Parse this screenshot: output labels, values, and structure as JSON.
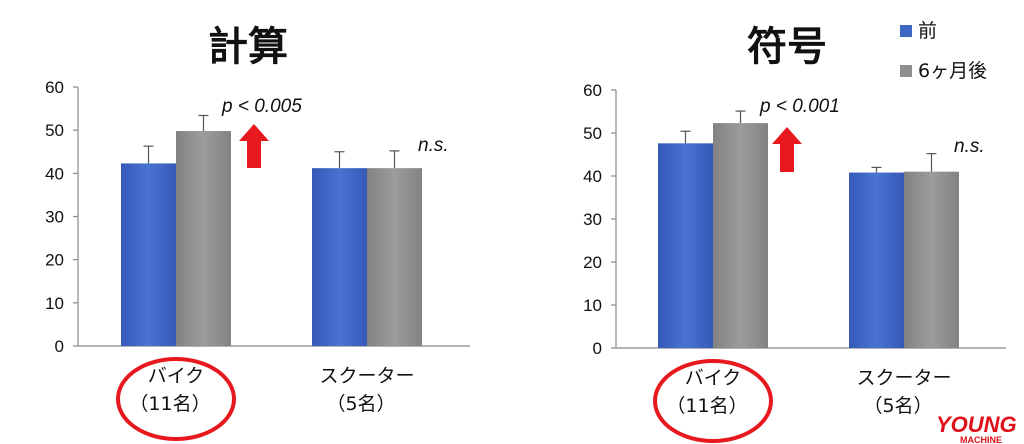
{
  "chart_data": [
    {
      "type": "bar",
      "title": "計算",
      "categories": [
        "バイク\n（11名）",
        "スクーター\n（5名）"
      ],
      "series": [
        {
          "name": "前",
          "values": [
            42.3,
            41.2
          ],
          "errors": [
            4.0,
            3.8
          ]
        },
        {
          "name": "6ヶ月後",
          "values": [
            49.8,
            41.2
          ],
          "errors": [
            3.6,
            4.0
          ]
        }
      ],
      "ylim": [
        0,
        60
      ],
      "yticks": [
        0,
        10,
        20,
        30,
        40,
        50,
        60
      ],
      "annotations": [
        "p < 0.005",
        "n.s."
      ],
      "highlight_category": 0,
      "grid": false
    },
    {
      "type": "bar",
      "title": "符号",
      "categories": [
        "バイク\n（11名）",
        "スクーター\n（5名）"
      ],
      "series": [
        {
          "name": "前",
          "values": [
            47.6,
            40.8
          ],
          "errors": [
            2.8,
            1.2
          ]
        },
        {
          "name": "6ヶ月後",
          "values": [
            52.3,
            41.0
          ],
          "errors": [
            2.8,
            4.2
          ]
        }
      ],
      "ylim": [
        0,
        60
      ],
      "yticks": [
        0,
        10,
        20,
        30,
        40,
        50,
        60
      ],
      "annotations": [
        "p < 0.001",
        "n.s."
      ],
      "highlight_category": 0,
      "grid": false
    }
  ],
  "legend": {
    "placement": "top-right",
    "items": [
      {
        "label": "前",
        "color": "#3f67c4"
      },
      {
        "label": "6ヶ月後",
        "color": "#8f8f8f"
      }
    ]
  },
  "colors": {
    "before": "#3f67c4",
    "after": "#8f8f8f",
    "arrow": "#e8191e",
    "circle": "#e8191e"
  },
  "watermark": {
    "text": "YOUNG",
    "sub": "MACHINE"
  }
}
